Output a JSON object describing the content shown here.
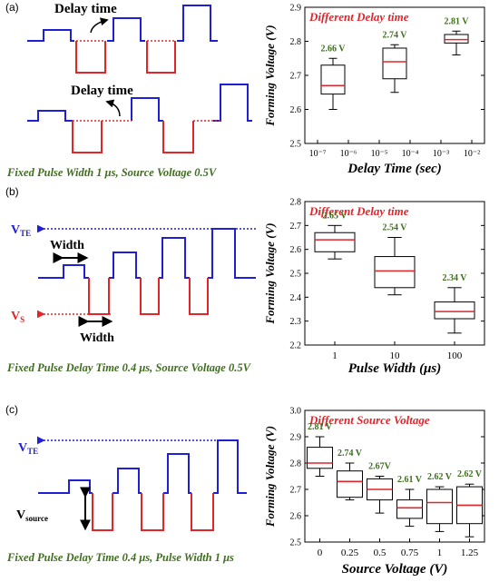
{
  "colors": {
    "blue": "#1f1fd6",
    "red": "#e0262b",
    "green": "#3f6e1f",
    "median": "#e0262b",
    "box": "#000000"
  },
  "panels": [
    {
      "label": "(a)",
      "schematic": {
        "annotations": [
          "Delay time",
          "Delay time"
        ],
        "caption": "Fixed Pulse Width 1 μs, Source Voltage 0.5V"
      }
    },
    {
      "label": "(b)",
      "schematic": {
        "annotations": [
          "Width",
          "Width"
        ],
        "vte_label": "V",
        "vte_sub": "TE",
        "vs_label": "V",
        "vs_sub": "S",
        "caption": "Fixed Pulse Delay Time 0.4 μs, Source Voltage 0.5V"
      }
    },
    {
      "label": "(c)",
      "schematic": {
        "vte_label": "V",
        "vte_sub": "TE",
        "vsource_label": "V",
        "vsource_sub": "source",
        "caption": "Fixed Pulse Delay Time 0.4 μs, Pulse Width 1 μs"
      }
    }
  ],
  "chart_data": [
    {
      "type": "box",
      "title": "Different Delay time",
      "xlabel": "Delay Time (sec)",
      "ylabel": "Forming Voltage (V)",
      "xscale": "log",
      "x_ticks": [
        "10⁻⁷",
        "10⁻⁶",
        "10⁻⁵",
        "10⁻⁴",
        "10⁻³",
        "10⁻²"
      ],
      "ylim": [
        2.5,
        2.9
      ],
      "y_ticks": [
        "2.5",
        "2.6",
        "2.7",
        "2.8",
        "2.9"
      ],
      "boxes": [
        {
          "x_exp": -6.5,
          "min": 2.6,
          "q1": 2.645,
          "median": 2.67,
          "q3": 2.73,
          "max": 2.75,
          "label": "2.66 V"
        },
        {
          "x_exp": -4.5,
          "min": 2.65,
          "q1": 2.69,
          "median": 2.74,
          "q3": 2.78,
          "max": 2.79,
          "label": "2.74 V"
        },
        {
          "x_exp": -2.5,
          "min": 2.76,
          "q1": 2.795,
          "median": 2.805,
          "q3": 2.82,
          "max": 2.83,
          "label": "2.81 V"
        }
      ]
    },
    {
      "type": "box",
      "title": "Different Delay time",
      "xlabel": "Pulse Width (μs)",
      "ylabel": "Forming Voltage (V)",
      "categories": [
        "1",
        "10",
        "100"
      ],
      "ylim": [
        2.2,
        2.8
      ],
      "y_ticks": [
        "2.2",
        "2.3",
        "2.4",
        "2.5",
        "2.6",
        "2.7",
        "2.8"
      ],
      "boxes": [
        {
          "min": 2.56,
          "q1": 2.59,
          "median": 2.64,
          "q3": 2.67,
          "max": 2.7,
          "label": "2.65 V"
        },
        {
          "min": 2.41,
          "q1": 2.44,
          "median": 2.51,
          "q3": 2.57,
          "max": 2.65,
          "label": "2.54 V"
        },
        {
          "min": 2.25,
          "q1": 2.31,
          "median": 2.34,
          "q3": 2.38,
          "max": 2.44,
          "label": "2.34 V"
        }
      ]
    },
    {
      "type": "box",
      "title": "Different Source Voltage",
      "xlabel": "Source Voltage (V)",
      "ylabel": "Forming Voltage (V)",
      "categories": [
        "0",
        "0.25",
        "0.5",
        "0.75",
        "1",
        "1.25"
      ],
      "ylim": [
        2.5,
        3.0
      ],
      "y_ticks": [
        "2.5",
        "2.6",
        "2.7",
        "2.8",
        "2.9",
        "3.0"
      ],
      "boxes": [
        {
          "min": 2.75,
          "q1": 2.78,
          "median": 2.8,
          "q3": 2.86,
          "max": 2.9,
          "label": "2.81 V"
        },
        {
          "min": 2.66,
          "q1": 2.67,
          "median": 2.73,
          "q3": 2.77,
          "max": 2.8,
          "label": "2.74 V"
        },
        {
          "min": 2.61,
          "q1": 2.66,
          "median": 2.7,
          "q3": 2.74,
          "max": 2.75,
          "label": "2.67V"
        },
        {
          "min": 2.56,
          "q1": 2.59,
          "median": 2.63,
          "q3": 2.66,
          "max": 2.7,
          "label": "2.61 V"
        },
        {
          "min": 2.54,
          "q1": 2.57,
          "median": 2.65,
          "q3": 2.7,
          "max": 2.71,
          "label": "2.62 V"
        },
        {
          "min": 2.52,
          "q1": 2.57,
          "median": 2.64,
          "q3": 2.71,
          "max": 2.72,
          "label": "2.62 V"
        }
      ]
    }
  ]
}
